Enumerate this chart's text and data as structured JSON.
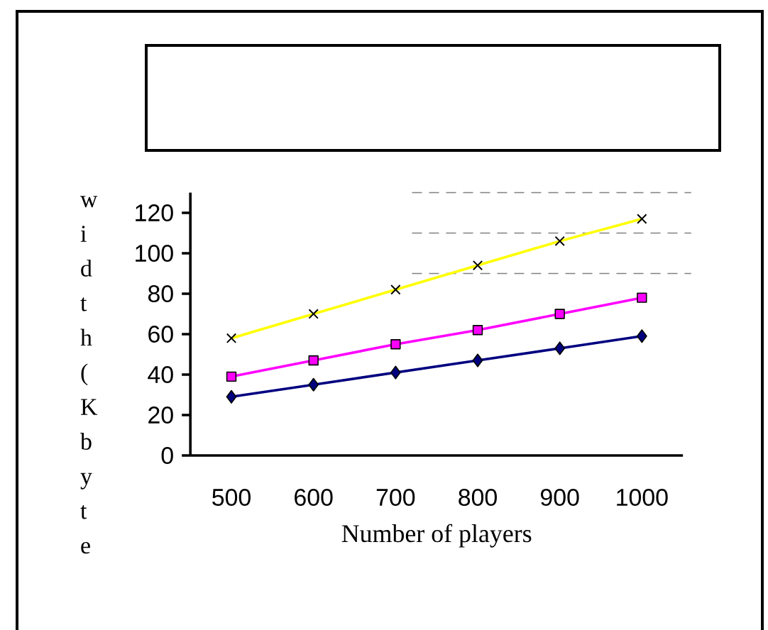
{
  "chart_data": {
    "type": "line",
    "xlabel": "Number of players",
    "ylabel": "width(Kbyte",
    "categories": [
      "500",
      "600",
      "700",
      "800",
      "900",
      "1000"
    ],
    "series": [
      {
        "color": "#000080",
        "marker": "diamond",
        "values": [
          29,
          35,
          41,
          47,
          53,
          59
        ]
      },
      {
        "color": "#ff00ff",
        "marker": "square",
        "values": [
          39,
          47,
          55,
          62,
          70,
          78
        ]
      },
      {
        "color": "#ffff00",
        "marker": "cross",
        "values": [
          58,
          70,
          82,
          94,
          106,
          117
        ]
      }
    ],
    "ylim": [
      0,
      130
    ],
    "yticks": [
      0,
      20,
      40,
      60,
      80,
      100,
      120
    ],
    "ref_lines": [
      {
        "axis": "y",
        "value": 90,
        "color": "#808080",
        "line_style": "dashed"
      },
      {
        "axis": "y",
        "value": 110,
        "color": "#808080",
        "line_style": "dashed"
      },
      {
        "axis": "y",
        "value": 130,
        "color": "#808080",
        "line_style": "dashed"
      }
    ],
    "grid": false,
    "line_style": "solid"
  }
}
